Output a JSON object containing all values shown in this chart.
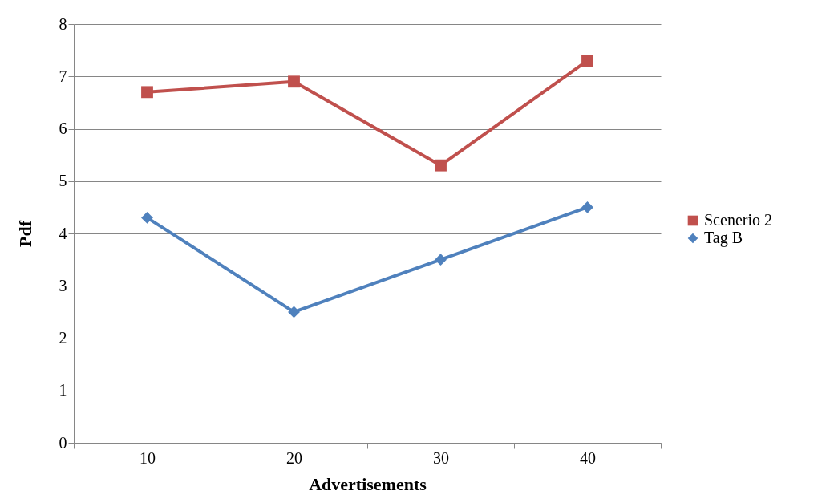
{
  "chart_data": {
    "type": "line",
    "xlabel": "Advertisements",
    "ylabel": "Pdf",
    "categories": [
      "10",
      "20",
      "30",
      "40"
    ],
    "series": [
      {
        "name": "Scenerio 2",
        "color": "#c0504d",
        "marker": "square",
        "values": [
          6.7,
          6.9,
          5.3,
          7.3
        ]
      },
      {
        "name": "Tag B",
        "color": "#4f81bd",
        "marker": "diamond",
        "values": [
          4.3,
          2.5,
          3.5,
          4.5
        ]
      }
    ],
    "ylim": [
      0,
      8
    ],
    "yticks": [
      0,
      1,
      2,
      3,
      4,
      5,
      6,
      7,
      8
    ],
    "grid": "y",
    "legend": "right"
  }
}
